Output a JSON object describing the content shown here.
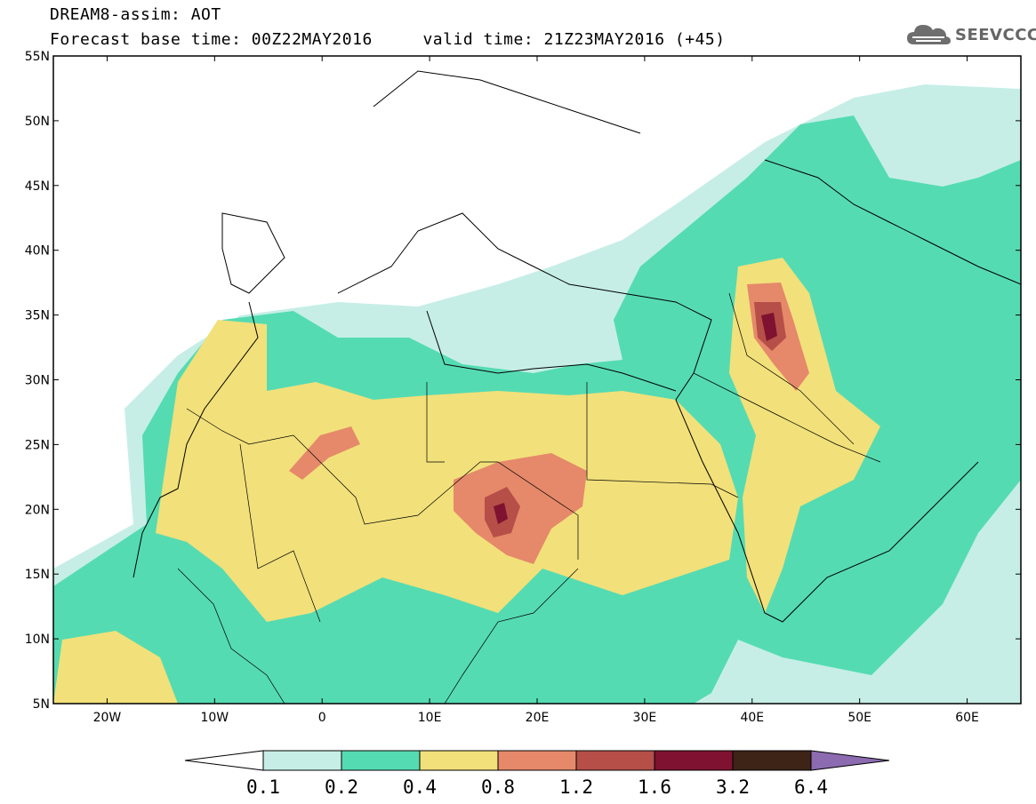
{
  "header": {
    "title": "DREAM8-assim: AOT",
    "base_time_label": "Forecast base time: 00Z22MAY2016",
    "valid_time_label": "valid time: 21Z23MAY2016 (+45)"
  },
  "logo": {
    "text": "SEEVCCC",
    "icon": "cloud-icon"
  },
  "map": {
    "lon_range": [
      -25,
      65
    ],
    "lat_range": [
      5,
      55
    ],
    "lat_ticks": [
      "5N",
      "10N",
      "15N",
      "20N",
      "25N",
      "30N",
      "35N",
      "40N",
      "45N",
      "50N",
      "55N"
    ],
    "lon_ticks": [
      "20W",
      "10W",
      "0",
      "10E",
      "20E",
      "30E",
      "40E",
      "50E",
      "60E"
    ]
  },
  "colorbar": {
    "labels": [
      "0.1",
      "0.2",
      "0.4",
      "0.8",
      "1.2",
      "1.6",
      "3.2",
      "6.4"
    ],
    "colors": [
      "#ffffff",
      "#c6eee7",
      "#55dbb2",
      "#f2e07a",
      "#e5896a",
      "#b54f48",
      "#7e1230",
      "#3d2417",
      "#8c6bb1"
    ]
  }
}
